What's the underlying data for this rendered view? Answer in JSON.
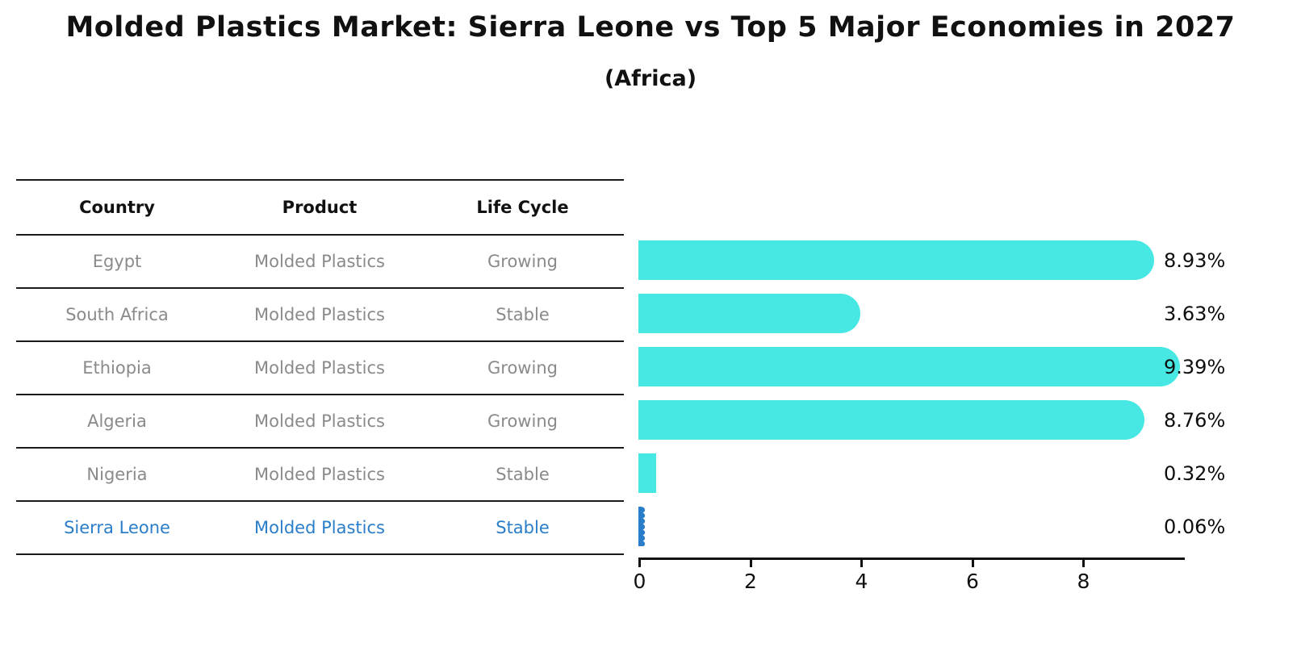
{
  "header": {
    "title": "Molded Plastics Market: Sierra Leone vs Top 5 Major Economies in 2027",
    "subtitle": "(Africa)"
  },
  "table": {
    "columns": [
      "Country",
      "Product",
      "Life Cycle"
    ],
    "rows": [
      {
        "country": "Egypt",
        "product": "Molded Plastics",
        "life_cycle": "Growing",
        "highlight": false
      },
      {
        "country": "South Africa",
        "product": "Molded Plastics",
        "life_cycle": "Stable",
        "highlight": false
      },
      {
        "country": "Ethiopia",
        "product": "Molded Plastics",
        "life_cycle": "Growing",
        "highlight": false
      },
      {
        "country": "Algeria",
        "product": "Molded Plastics",
        "life_cycle": "Growing",
        "highlight": false
      },
      {
        "country": "Nigeria",
        "product": "Molded Plastics",
        "life_cycle": "Stable",
        "highlight": false
      },
      {
        "country": "Sierra Leone",
        "product": "Molded Plastics",
        "life_cycle": "Stable",
        "highlight": true
      }
    ]
  },
  "chart_data": {
    "type": "bar",
    "orientation": "horizontal",
    "title": "Molded Plastics Market: Sierra Leone vs Top 5 Major Economies in 2027 (Africa)",
    "categories": [
      "Egypt",
      "South Africa",
      "Ethiopia",
      "Algeria",
      "Nigeria",
      "Sierra Leone"
    ],
    "values": [
      8.93,
      3.63,
      9.39,
      8.76,
      0.32,
      0.06
    ],
    "value_labels": [
      "8.93%",
      "3.63%",
      "9.39%",
      "8.76%",
      "0.32%",
      "0.06%"
    ],
    "unit": "percent CAGR/market share shown as %",
    "x_ticks": [
      0,
      2,
      4,
      6,
      8
    ],
    "xlim": [
      0,
      9.85
    ],
    "grid": false,
    "legend": "none",
    "highlight_index": 5,
    "bar_color": "#47e8e3",
    "highlight_bar_color": "#2a7dc9",
    "axis_color": "#111111",
    "label_color": "#0d0d0d"
  }
}
